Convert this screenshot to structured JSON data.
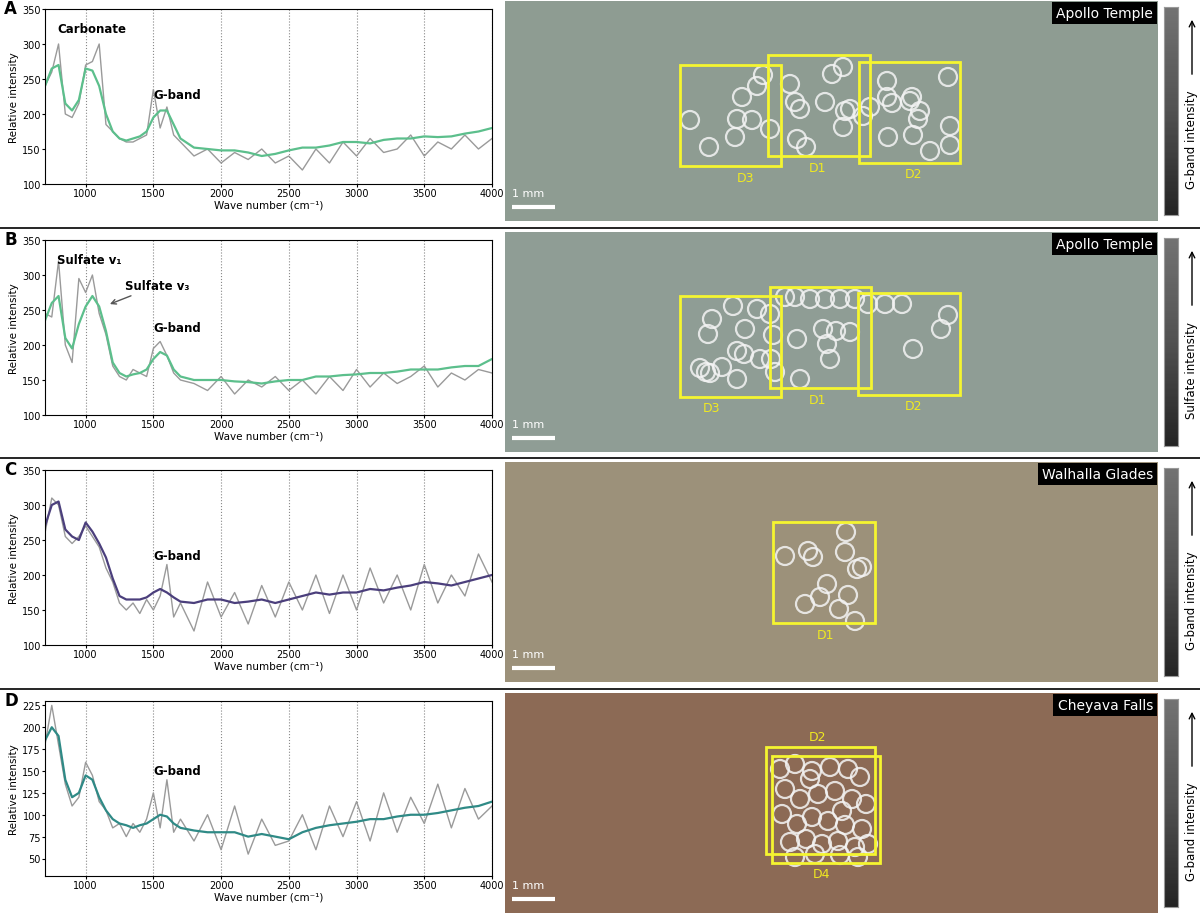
{
  "chart_data": [
    {
      "type": "line",
      "title": "A",
      "xlabel": "Wave number (cm⁻¹)",
      "ylabel": "Relative intensity",
      "xlim": [
        700,
        4000
      ],
      "xticks": [
        1000,
        1500,
        2000,
        2500,
        3000,
        3500,
        4000
      ],
      "ylim": [
        100,
        350
      ],
      "yticks": [
        100,
        150,
        200,
        250,
        300,
        350
      ],
      "grid": true,
      "annotations": [
        "Carbonate",
        "G-band"
      ],
      "x": [
        700,
        750,
        800,
        850,
        900,
        950,
        1000,
        1050,
        1100,
        1150,
        1200,
        1250,
        1300,
        1350,
        1400,
        1450,
        1500,
        1550,
        1600,
        1650,
        1700,
        1800,
        1900,
        2000,
        2100,
        2200,
        2300,
        2400,
        2500,
        2600,
        2700,
        2800,
        2900,
        3000,
        3100,
        3200,
        3300,
        3400,
        3500,
        3600,
        3700,
        3800,
        3900,
        4000
      ],
      "series": [
        {
          "color": "#9a9a9a",
          "values": [
            240,
            260,
            300,
            200,
            195,
            215,
            270,
            275,
            300,
            185,
            175,
            165,
            160,
            160,
            165,
            170,
            235,
            180,
            210,
            170,
            160,
            140,
            150,
            130,
            145,
            135,
            150,
            130,
            140,
            120,
            150,
            130,
            160,
            140,
            165,
            145,
            150,
            170,
            140,
            160,
            150,
            170,
            150,
            165
          ]
        },
        {
          "color": "#5cbf8c",
          "values": [
            240,
            265,
            270,
            215,
            205,
            220,
            265,
            262,
            240,
            200,
            175,
            165,
            162,
            165,
            168,
            175,
            195,
            205,
            205,
            185,
            165,
            152,
            150,
            148,
            148,
            145,
            140,
            143,
            148,
            152,
            152,
            155,
            160,
            160,
            158,
            163,
            165,
            165,
            168,
            167,
            168,
            172,
            175,
            180
          ]
        }
      ]
    },
    {
      "type": "line",
      "title": "B",
      "xlabel": "Wave number (cm⁻¹)",
      "ylabel": "Relative intensity",
      "xlim": [
        700,
        4000
      ],
      "xticks": [
        1000,
        1500,
        2000,
        2500,
        3000,
        3500,
        4000
      ],
      "ylim": [
        100,
        350
      ],
      "yticks": [
        100,
        150,
        200,
        250,
        300,
        350
      ],
      "grid": true,
      "annotations": [
        "Sulfate v₁",
        "Sulfate v₃",
        "G-band"
      ],
      "x": [
        700,
        750,
        800,
        850,
        900,
        950,
        1000,
        1050,
        1100,
        1150,
        1200,
        1250,
        1300,
        1350,
        1400,
        1450,
        1500,
        1550,
        1600,
        1650,
        1700,
        1800,
        1900,
        2000,
        2100,
        2200,
        2300,
        2400,
        2500,
        2600,
        2700,
        2800,
        2900,
        3000,
        3100,
        3200,
        3300,
        3400,
        3500,
        3600,
        3700,
        3800,
        3900,
        4000
      ],
      "series": [
        {
          "color": "#9a9a9a",
          "values": [
            245,
            240,
            320,
            200,
            175,
            295,
            275,
            300,
            245,
            215,
            170,
            155,
            150,
            165,
            160,
            155,
            195,
            205,
            185,
            160,
            150,
            145,
            135,
            155,
            130,
            150,
            140,
            155,
            135,
            150,
            130,
            155,
            135,
            165,
            140,
            160,
            145,
            155,
            170,
            140,
            160,
            150,
            165,
            160
          ]
        },
        {
          "color": "#5cbf8c",
          "values": [
            235,
            260,
            270,
            210,
            195,
            230,
            255,
            270,
            255,
            220,
            175,
            160,
            155,
            158,
            160,
            165,
            180,
            190,
            185,
            165,
            155,
            150,
            150,
            150,
            148,
            147,
            145,
            148,
            150,
            150,
            155,
            155,
            157,
            158,
            160,
            160,
            162,
            165,
            165,
            165,
            168,
            170,
            170,
            180
          ]
        }
      ]
    },
    {
      "type": "line",
      "title": "C",
      "xlabel": "Wave number (cm⁻¹)",
      "ylabel": "Relative intensity",
      "xlim": [
        700,
        4000
      ],
      "xticks": [
        1000,
        1500,
        2000,
        2500,
        3000,
        3500,
        4000
      ],
      "ylim": [
        100,
        350
      ],
      "yticks": [
        100,
        150,
        200,
        250,
        300,
        350
      ],
      "grid": true,
      "annotations": [
        "G-band"
      ],
      "x": [
        700,
        750,
        800,
        850,
        900,
        950,
        1000,
        1050,
        1100,
        1150,
        1200,
        1250,
        1300,
        1350,
        1400,
        1450,
        1500,
        1550,
        1600,
        1650,
        1700,
        1800,
        1900,
        2000,
        2100,
        2200,
        2300,
        2400,
        2500,
        2600,
        2700,
        2800,
        2900,
        3000,
        3100,
        3200,
        3300,
        3400,
        3500,
        3600,
        3700,
        3800,
        3900,
        4000
      ],
      "series": [
        {
          "color": "#9a9a9a",
          "values": [
            260,
            310,
            300,
            255,
            245,
            255,
            270,
            255,
            240,
            210,
            190,
            160,
            150,
            160,
            145,
            165,
            150,
            170,
            215,
            140,
            160,
            120,
            190,
            140,
            175,
            130,
            185,
            140,
            190,
            150,
            200,
            145,
            200,
            150,
            210,
            160,
            200,
            150,
            215,
            160,
            200,
            170,
            230,
            190
          ]
        },
        {
          "color": "#4b3f7c",
          "values": [
            270,
            300,
            305,
            265,
            255,
            250,
            275,
            262,
            245,
            225,
            195,
            170,
            165,
            165,
            165,
            168,
            175,
            180,
            175,
            168,
            162,
            160,
            165,
            165,
            160,
            162,
            165,
            160,
            165,
            170,
            175,
            172,
            175,
            175,
            180,
            178,
            182,
            185,
            190,
            188,
            185,
            190,
            195,
            200
          ]
        }
      ]
    },
    {
      "type": "line",
      "title": "D",
      "xlabel": "Wave number (cm⁻¹)",
      "ylabel": "Relative intensity",
      "xlim": [
        700,
        4000
      ],
      "xticks": [
        1000,
        1500,
        2000,
        2500,
        3000,
        3500,
        4000
      ],
      "ylim": [
        30,
        230
      ],
      "yticks": [
        50,
        75,
        100,
        125,
        150,
        175,
        200,
        225
      ],
      "grid": true,
      "annotations": [
        "G-band"
      ],
      "x": [
        700,
        750,
        800,
        850,
        900,
        950,
        1000,
        1050,
        1100,
        1150,
        1200,
        1250,
        1300,
        1350,
        1400,
        1450,
        1500,
        1550,
        1600,
        1650,
        1700,
        1800,
        1900,
        2000,
        2100,
        2200,
        2300,
        2400,
        2500,
        2600,
        2700,
        2800,
        2900,
        3000,
        3100,
        3200,
        3300,
        3400,
        3500,
        3600,
        3700,
        3800,
        3900,
        4000
      ],
      "series": [
        {
          "color": "#9a9a9a",
          "values": [
            180,
            225,
            180,
            135,
            110,
            120,
            160,
            145,
            115,
            105,
            85,
            90,
            75,
            90,
            80,
            95,
            125,
            85,
            140,
            80,
            95,
            70,
            100,
            60,
            110,
            55,
            95,
            65,
            70,
            100,
            60,
            110,
            75,
            115,
            70,
            125,
            80,
            120,
            90,
            135,
            85,
            130,
            95,
            110
          ]
        },
        {
          "color": "#2f8a86",
          "values": [
            185,
            200,
            190,
            140,
            120,
            125,
            145,
            140,
            120,
            105,
            95,
            90,
            88,
            85,
            88,
            90,
            95,
            100,
            98,
            90,
            85,
            82,
            80,
            80,
            80,
            75,
            78,
            75,
            72,
            80,
            85,
            88,
            90,
            92,
            95,
            95,
            98,
            100,
            100,
            102,
            105,
            108,
            110,
            115
          ]
        }
      ]
    }
  ],
  "images": [
    {
      "title": "Apollo Temple",
      "boxes": [
        "D3",
        "D1",
        "D2"
      ],
      "scale_bar": "1 mm",
      "colorbar_label": "G-band intensity"
    },
    {
      "title": "Apollo Temple",
      "boxes": [
        "D3",
        "D1",
        "D2"
      ],
      "scale_bar": "1 mm",
      "colorbar_label": "Sulfate intensity"
    },
    {
      "title": "Walhalla Glades",
      "boxes": [
        "D1"
      ],
      "scale_bar": "1 mm",
      "colorbar_label": "G-band intensity"
    },
    {
      "title": "Cheyava Falls",
      "boxes": [
        "D2",
        "D4"
      ],
      "scale_bar": "1 mm",
      "colorbar_label": "G-band intensity"
    }
  ]
}
